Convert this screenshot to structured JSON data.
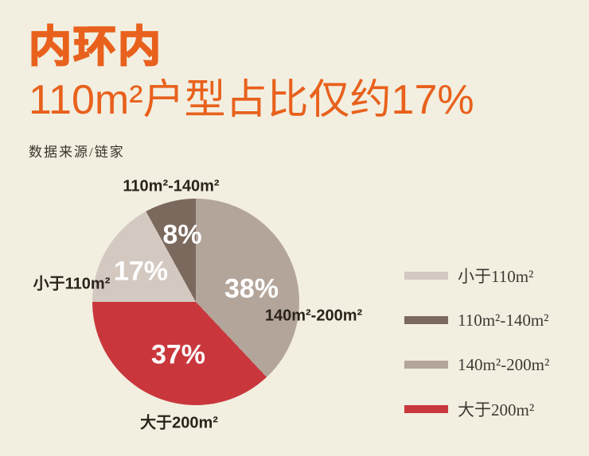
{
  "page": {
    "background_color": "#f2efe1"
  },
  "header": {
    "title": "内环内",
    "subtitle": "110m²户型占比仅约17%",
    "source": "数据来源/链家",
    "accent_color": "#e8611d"
  },
  "chart_data": {
    "type": "pie",
    "unit": "percent",
    "start_angle": "top",
    "direction": "clockwise",
    "slices": [
      {
        "label": "140m²-200m²",
        "value": 38,
        "pct_label": "38%",
        "color": "#b4a59b"
      },
      {
        "label": "大于200m²",
        "value": 37,
        "pct_label": "37%",
        "color": "#c9373c"
      },
      {
        "label": "小于110m²",
        "value": 17,
        "pct_label": "17%",
        "color": "#d3c9c1"
      },
      {
        "label": "110m²-140m²",
        "value": 8,
        "pct_label": "8%",
        "color": "#7b695d"
      }
    ],
    "value_label_color": "#ffffff",
    "category_label_color": "#2b241c",
    "legend": {
      "position": "right",
      "items": [
        {
          "label": "小于110m²",
          "color": "#d3c9c1"
        },
        {
          "label": "110m²-140m²",
          "color": "#7b695d"
        },
        {
          "label": "140m²-200m²",
          "color": "#b4a59b"
        },
        {
          "label": "大于200m²",
          "color": "#c9373c"
        }
      ]
    }
  }
}
